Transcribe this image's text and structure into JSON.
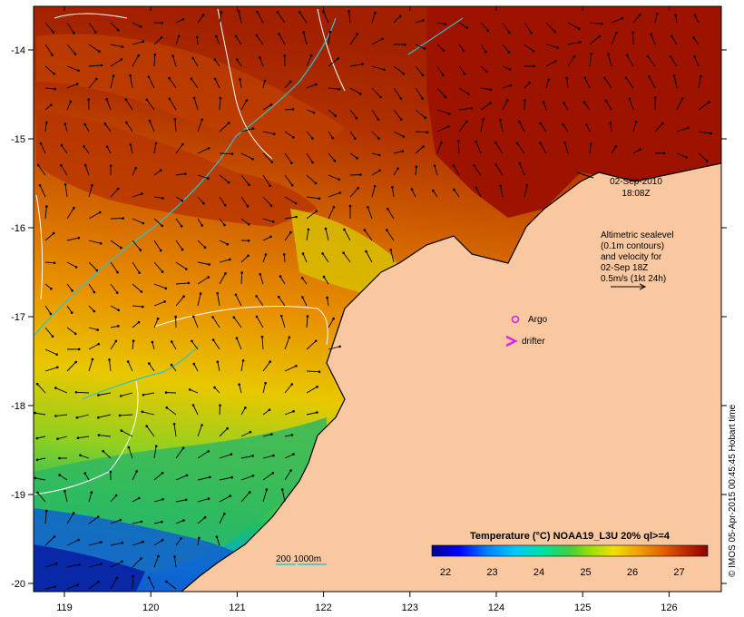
{
  "map": {
    "date_line1": "02-Sep-2010",
    "date_line2": "18:08Z",
    "altimetry_lines": [
      "Altimetric sealevel",
      "(0.1m contours)",
      "and velocity for",
      "02-Sep 18Z",
      "0.5m/s (1kt 24h)"
    ],
    "legend_argo": "Argo",
    "legend_drifter": "drifter",
    "depth_legend": "200  1000m",
    "colorbar_title": "Temperature (°C) NOAA19_L3U 20% ql>=4",
    "colorbar_ticks": [
      "22",
      "23",
      "24",
      "25",
      "26",
      "27"
    ],
    "credit": "© IMOS 05-Apr-2015 00:45:45 Hobart time",
    "lon_ticks": [
      "119",
      "120",
      "121",
      "122",
      "123",
      "124",
      "125",
      "126"
    ],
    "lat_ticks": [
      "-14",
      "-15",
      "-16",
      "-17",
      "-18",
      "-19",
      "-20"
    ],
    "colors": {
      "land": "#f9c8a0",
      "contour_200": "#2ec4c4",
      "argo": "#e020e0",
      "drifter": "#e020e0",
      "colormap": [
        "#00008b",
        "#0000ff",
        "#0080ff",
        "#00c8ff",
        "#00e0a0",
        "#40d040",
        "#a0e000",
        "#f0e000",
        "#f0a000",
        "#e06000",
        "#c02800",
        "#8b0000"
      ]
    }
  }
}
